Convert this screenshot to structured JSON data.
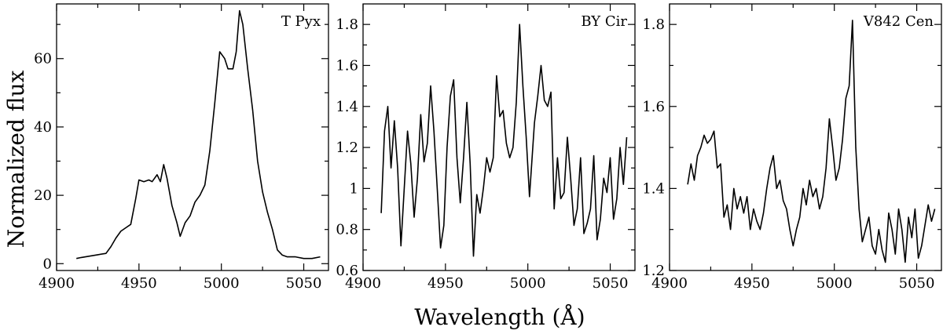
{
  "chart_data": {
    "type": "line",
    "ylabel": "Normalized flux",
    "xlabel": "Wavelength (Å)",
    "panels": [
      {
        "label": "T Pyx",
        "xlim": [
          4900,
          5065
        ],
        "ylim": [
          -2,
          76
        ],
        "xticks": [
          4900,
          4950,
          5000,
          5050
        ],
        "xtick_labels": [
          "4900",
          "4950",
          "5000",
          "5050"
        ],
        "yticks": [
          0,
          20,
          40,
          60
        ],
        "ytick_labels": [
          "0",
          "20",
          "40",
          "60"
        ],
        "x": [
          4912,
          4915,
          4920,
          4925,
          4930,
          4933,
          4936,
          4939,
          4942,
          4945,
          4948,
          4950,
          4953,
          4956,
          4958,
          4961,
          4963,
          4965,
          4967,
          4970,
          4973,
          4975,
          4978,
          4981,
          4984,
          4987,
          4990,
          4993,
          4996,
          4999,
          5002,
          5004,
          5007,
          5009,
          5011,
          5013,
          5016,
          5019,
          5022,
          5025,
          5028,
          5031,
          5034,
          5037,
          5040,
          5045,
          5050,
          5055,
          5060
        ],
        "y": [
          1.5,
          1.8,
          2.2,
          2.6,
          3,
          5,
          7.5,
          9.5,
          10.5,
          11.5,
          19,
          24.5,
          24,
          24.5,
          24,
          26,
          24,
          29,
          25,
          17,
          12,
          8,
          12,
          14,
          18,
          20,
          23,
          33,
          47,
          62,
          60,
          57,
          57,
          62,
          74,
          70,
          57,
          45,
          30,
          21,
          15,
          10,
          4,
          2.5,
          2,
          2,
          1.5,
          1.5,
          2
        ]
      },
      {
        "label": "BY Cir",
        "xlim": [
          4900,
          5065
        ],
        "ylim": [
          0.6,
          1.9
        ],
        "xticks": [
          4900,
          4950,
          5000,
          5050
        ],
        "xtick_labels": [
          "4900",
          "4950",
          "5000",
          "5050"
        ],
        "yticks": [
          0.6,
          0.8,
          1,
          1.2,
          1.4,
          1.6,
          1.8
        ],
        "ytick_labels": [
          "0.6",
          "0.8",
          "1",
          "1.2",
          "1.4",
          "1.6",
          "1.8"
        ],
        "x": [
          4911,
          4913,
          4915,
          4917,
          4919,
          4921,
          4923,
          4925,
          4927,
          4929,
          4931,
          4933,
          4935,
          4937,
          4939,
          4941,
          4943,
          4945,
          4947,
          4949,
          4951,
          4953,
          4955,
          4957,
          4959,
          4961,
          4963,
          4965,
          4967,
          4969,
          4971,
          4973,
          4975,
          4977,
          4979,
          4981,
          4983,
          4985,
          4987,
          4989,
          4991,
          4993,
          4995,
          4997,
          4999,
          5001,
          5004,
          5006,
          5008,
          5010,
          5012,
          5014,
          5016,
          5018,
          5020,
          5022,
          5024,
          5026,
          5028,
          5030,
          5032,
          5034,
          5036,
          5038,
          5040,
          5042,
          5044,
          5046,
          5048,
          5050,
          5052,
          5054,
          5056,
          5058,
          5060
        ],
        "y": [
          0.88,
          1.28,
          1.4,
          1.1,
          1.33,
          1.1,
          0.72,
          1.0,
          1.28,
          1.12,
          0.86,
          1.05,
          1.36,
          1.13,
          1.22,
          1.5,
          1.28,
          1.0,
          0.71,
          0.82,
          1.2,
          1.45,
          1.53,
          1.15,
          0.93,
          1.15,
          1.42,
          1.12,
          0.67,
          0.97,
          0.88,
          1.0,
          1.15,
          1.08,
          1.15,
          1.55,
          1.35,
          1.38,
          1.22,
          1.15,
          1.2,
          1.42,
          1.8,
          1.5,
          1.25,
          0.96,
          1.32,
          1.45,
          1.6,
          1.43,
          1.4,
          1.47,
          0.9,
          1.15,
          0.95,
          0.98,
          1.25,
          1.05,
          0.82,
          0.9,
          1.15,
          0.78,
          0.83,
          0.9,
          1.16,
          0.75,
          0.85,
          1.05,
          0.98,
          1.15,
          0.85,
          0.95,
          1.2,
          1.02,
          1.25
        ]
      },
      {
        "label": "V842 Cen",
        "xlim": [
          4900,
          5065
        ],
        "ylim": [
          1.2,
          1.85
        ],
        "xticks": [
          4900,
          4950,
          5000,
          5050
        ],
        "xtick_labels": [
          "4900",
          "4950",
          "5000",
          "5050"
        ],
        "yticks": [
          1.2,
          1.4,
          1.6,
          1.8
        ],
        "ytick_labels": [
          "1.2",
          "1.4",
          "1.6",
          "1.8"
        ],
        "x": [
          4911,
          4913,
          4915,
          4917,
          4919,
          4921,
          4923,
          4925,
          4927,
          4929,
          4931,
          4933,
          4935,
          4937,
          4939,
          4941,
          4943,
          4945,
          4947,
          4949,
          4951,
          4953,
          4955,
          4957,
          4959,
          4961,
          4963,
          4965,
          4967,
          4969,
          4971,
          4973,
          4975,
          4977,
          4979,
          4981,
          4983,
          4985,
          4987,
          4989,
          4991,
          4993,
          4995,
          4997,
          4999,
          5001,
          5003,
          5005,
          5007,
          5009,
          5011,
          5013,
          5015,
          5017,
          5019,
          5021,
          5023,
          5025,
          5027,
          5029,
          5031,
          5033,
          5035,
          5037,
          5039,
          5041,
          5043,
          5045,
          5047,
          5049,
          5051,
          5053,
          5055,
          5057,
          5059,
          5061
        ],
        "y": [
          1.41,
          1.46,
          1.42,
          1.48,
          1.5,
          1.53,
          1.51,
          1.52,
          1.54,
          1.45,
          1.46,
          1.33,
          1.36,
          1.3,
          1.4,
          1.35,
          1.38,
          1.34,
          1.38,
          1.3,
          1.35,
          1.32,
          1.3,
          1.34,
          1.4,
          1.45,
          1.48,
          1.4,
          1.42,
          1.37,
          1.35,
          1.3,
          1.26,
          1.3,
          1.33,
          1.4,
          1.36,
          1.42,
          1.38,
          1.4,
          1.35,
          1.38,
          1.45,
          1.57,
          1.5,
          1.42,
          1.45,
          1.52,
          1.62,
          1.65,
          1.81,
          1.5,
          1.35,
          1.27,
          1.3,
          1.33,
          1.26,
          1.24,
          1.3,
          1.25,
          1.22,
          1.34,
          1.3,
          1.24,
          1.35,
          1.3,
          1.22,
          1.33,
          1.28,
          1.35,
          1.23,
          1.26,
          1.31,
          1.36,
          1.32,
          1.35
        ]
      }
    ]
  }
}
